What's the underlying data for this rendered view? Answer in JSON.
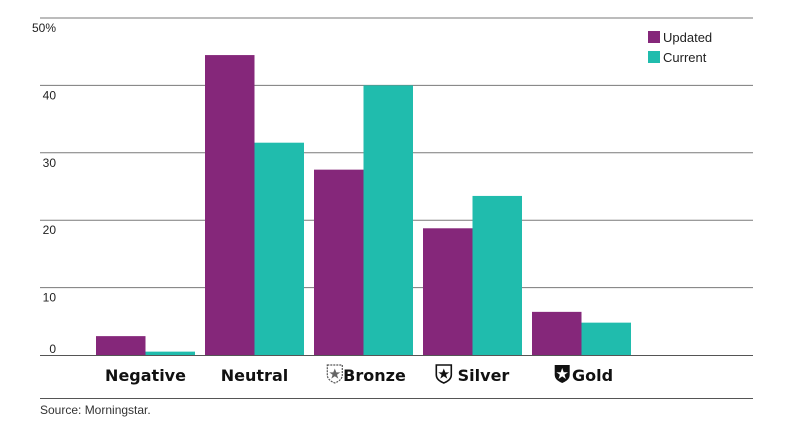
{
  "chart_data": {
    "type": "bar",
    "categories": [
      "Negative",
      "Neutral",
      "Bronze",
      "Silver",
      "Gold"
    ],
    "series": [
      {
        "name": "Updated",
        "color": "#85277a",
        "values": [
          2.8,
          44.5,
          27.5,
          18.8,
          6.4
        ]
      },
      {
        "name": "Current",
        "color": "#20bcad",
        "values": [
          0.5,
          31.5,
          40.0,
          23.6,
          4.8
        ]
      }
    ],
    "yticks": [
      {
        "value": 0,
        "label": "0"
      },
      {
        "value": 10,
        "label": "10"
      },
      {
        "value": 20,
        "label": "20"
      },
      {
        "value": 30,
        "label": "30"
      },
      {
        "value": 40,
        "label": "40"
      },
      {
        "value": 50,
        "label": "50%"
      }
    ],
    "ylim": [
      0,
      50
    ],
    "grid": true,
    "legend_position": "top-right",
    "category_icons": [
      null,
      null,
      "bronze-medal-icon",
      "silver-medal-icon",
      "gold-medal-icon"
    ]
  },
  "source": "Source: Morningstar."
}
